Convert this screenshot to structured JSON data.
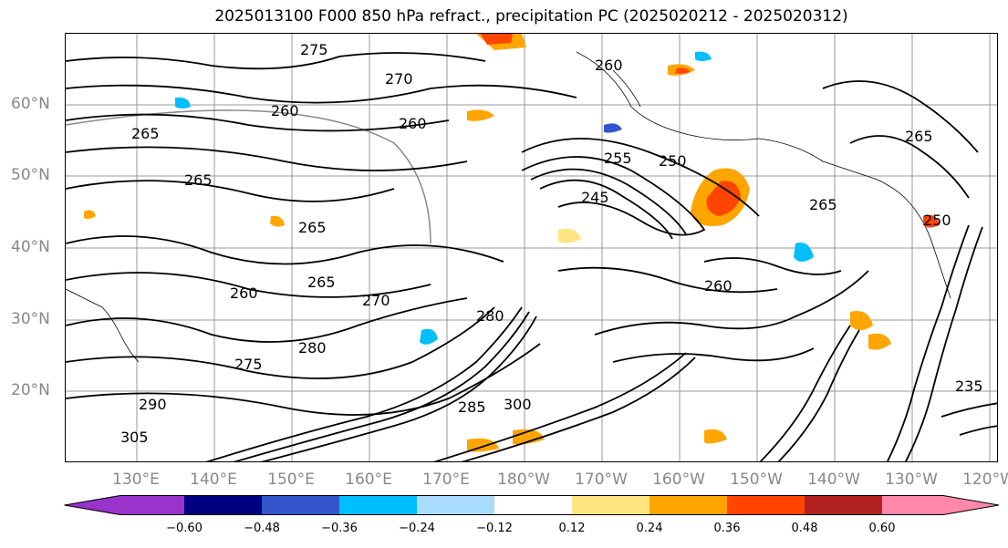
{
  "title": "2025013100 F000 850 hPa refract., precipitation PC (2025020212 - 2025020312)",
  "lat_labels": [
    "60°N",
    "50°N",
    "40°N",
    "30°N",
    "20°N"
  ],
  "lon_labels": [
    "130°E",
    "140°E",
    "150°E",
    "160°E",
    "170°E",
    "180°W",
    "170°W",
    "160°W",
    "150°W",
    "140°W",
    "130°W",
    "120°W"
  ],
  "contour_labels": [
    "275",
    "270",
    "260",
    "260",
    "265",
    "265",
    "260",
    "255",
    "250",
    "245",
    "265",
    "265",
    "260",
    "260",
    "265",
    "270",
    "280",
    "275",
    "280",
    "285",
    "290",
    "300",
    "305",
    "250",
    "235",
    "265"
  ],
  "colorbar": {
    "colors": [
      "#9933cc",
      "#000080",
      "#3355cc",
      "#00bfff",
      "#aadcff",
      "#ffffff",
      "#ffe680",
      "#ffa500",
      "#ff4500",
      "#b22222",
      "#ff88aa"
    ],
    "ticks": [
      "−0.60",
      "−0.48",
      "−0.36",
      "−0.24",
      "−0.12",
      "0.12",
      "0.24",
      "0.36",
      "0.48",
      "0.60"
    ]
  },
  "colors": {
    "contour": "#000000",
    "grid": "#999999",
    "axis_label": "#888888"
  }
}
